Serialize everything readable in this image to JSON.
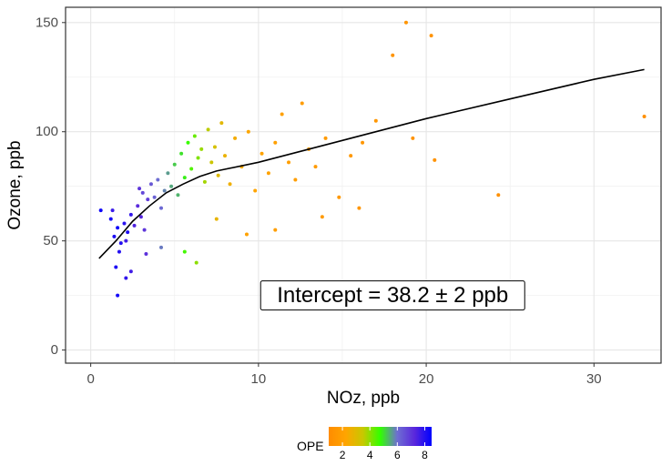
{
  "chart_data": {
    "type": "scatter",
    "title": "",
    "xlabel": "NOz, ppb",
    "ylabel": "Ozone, ppb",
    "xlim": [
      -1.5,
      34
    ],
    "ylim": [
      -6,
      157
    ],
    "x_ticks": [
      0,
      10,
      20,
      30
    ],
    "y_ticks": [
      0,
      50,
      100,
      150
    ],
    "grid": true,
    "annotation": "Intercept = 38.2 ± 2 ppb",
    "annotation_pos": [
      18,
      25
    ],
    "color_scale": {
      "title": "OPE",
      "ticks": [
        2,
        4,
        6,
        8
      ],
      "range": [
        1,
        8.5
      ],
      "colors": [
        "#ff8c00",
        "#ffa500",
        "#c8c800",
        "#32ff00",
        "#6e6ed2",
        "#5a28dc",
        "#0000ff"
      ],
      "position": "bottom"
    },
    "fit_line": {
      "x": [
        0.5,
        1.5,
        2.5,
        3.5,
        4.5,
        5.5,
        6.5,
        7.5,
        10,
        15,
        20,
        25,
        30,
        33
      ],
      "y": [
        42,
        50,
        59,
        66,
        72,
        76,
        79.5,
        82,
        86,
        96,
        106,
        115,
        124,
        128.5
      ]
    },
    "series": [
      {
        "points": [
          [
            1.2,
            60,
            8.2
          ],
          [
            1.4,
            52,
            8.1
          ],
          [
            1.6,
            56,
            8.3
          ],
          [
            1.8,
            49,
            8
          ],
          [
            2,
            58,
            7.9
          ],
          [
            2.2,
            54,
            8.1
          ],
          [
            1.3,
            64,
            7.7
          ],
          [
            1.7,
            45,
            8
          ],
          [
            2.1,
            50,
            7.6
          ],
          [
            2.4,
            62,
            7.8
          ],
          [
            2.6,
            57,
            7.4
          ],
          [
            2.8,
            66,
            7.2
          ],
          [
            3,
            61,
            7.3
          ],
          [
            3.2,
            55,
            7
          ],
          [
            3.4,
            69,
            6.9
          ],
          [
            3.1,
            72,
            6.7
          ],
          [
            2.9,
            74,
            7
          ],
          [
            3.6,
            76,
            6.4
          ],
          [
            3.8,
            70,
            6.2
          ],
          [
            4,
            78,
            6
          ],
          [
            4.2,
            65,
            6.1
          ],
          [
            4.4,
            73,
            5.8
          ],
          [
            4.6,
            81,
            5.6
          ],
          [
            4.8,
            75,
            5.5
          ],
          [
            5,
            85,
            5.2
          ],
          [
            5.2,
            71,
            5.4
          ],
          [
            5.4,
            90,
            5
          ],
          [
            5.6,
            79,
            4.9
          ],
          [
            5.8,
            95,
            4.7
          ],
          [
            6,
            83,
            4.5
          ],
          [
            6.2,
            98,
            4.3
          ],
          [
            6.4,
            88,
            4.1
          ],
          [
            6.6,
            92,
            3.9
          ],
          [
            6.8,
            77,
            3.8
          ],
          [
            7,
            101,
            3.6
          ],
          [
            7.2,
            86,
            3.4
          ],
          [
            7.4,
            93,
            3.2
          ],
          [
            7.6,
            80,
            3
          ],
          [
            7.8,
            104,
            2.9
          ],
          [
            8,
            89,
            2.7
          ],
          [
            8.3,
            76,
            2.6
          ],
          [
            8.6,
            97,
            2.5
          ],
          [
            9,
            84,
            2.4
          ],
          [
            9.4,
            100,
            2.3
          ],
          [
            9.8,
            73,
            2.2
          ],
          [
            10.2,
            90,
            2.1
          ],
          [
            10.6,
            81,
            2.1
          ],
          [
            11,
            95,
            2
          ],
          [
            11.4,
            108,
            2
          ],
          [
            11.8,
            86,
            1.9
          ],
          [
            12.2,
            78,
            1.9
          ],
          [
            12.6,
            113,
            1.8
          ],
          [
            13,
            92,
            1.8
          ],
          [
            13.4,
            84,
            1.7
          ],
          [
            14,
            97,
            1.7
          ],
          [
            14.8,
            70,
            1.6
          ],
          [
            15.5,
            89,
            1.6
          ],
          [
            16.2,
            95,
            1.5
          ],
          [
            17,
            105,
            1.5
          ],
          [
            18,
            135,
            1.4
          ],
          [
            18.8,
            150,
            1.4
          ],
          [
            19.2,
            97,
            1.3
          ],
          [
            20.3,
            144,
            1.3
          ],
          [
            20.5,
            87,
            1.3
          ],
          [
            24.3,
            71,
            1.2
          ],
          [
            33,
            107,
            1.2
          ],
          [
            16,
            65,
            1.5
          ],
          [
            13.8,
            61,
            1.7
          ],
          [
            11,
            55,
            1.9
          ],
          [
            9.3,
            53,
            2.1
          ],
          [
            7.5,
            60,
            2.8
          ],
          [
            6.3,
            40,
            4
          ],
          [
            5.6,
            45,
            4.6
          ],
          [
            4.2,
            47,
            5.9
          ],
          [
            3.3,
            44,
            7.1
          ],
          [
            2.4,
            36,
            7.6
          ],
          [
            2.1,
            33,
            7.8
          ],
          [
            1.6,
            25,
            8.2
          ],
          [
            1.5,
            38,
            8.1
          ],
          [
            0.6,
            64,
            8.3
          ]
        ]
      }
    ]
  }
}
